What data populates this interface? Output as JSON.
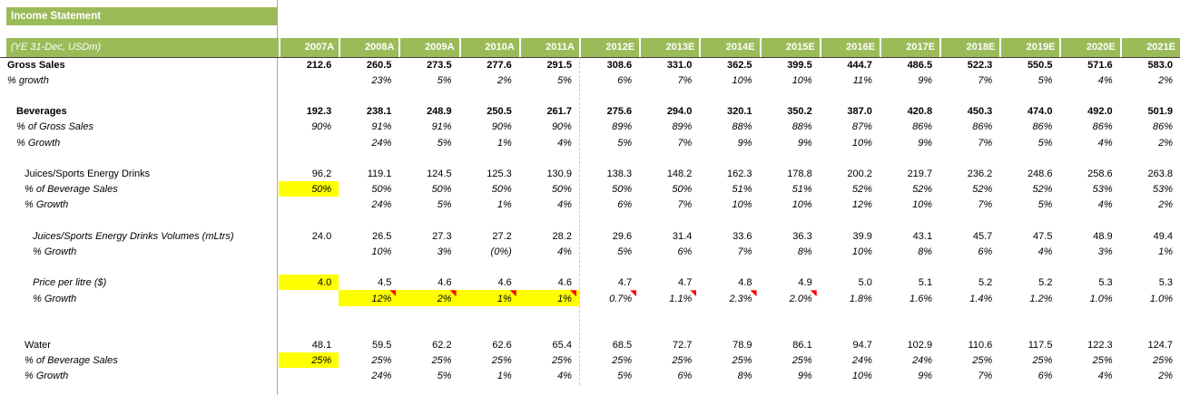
{
  "title": "Income Statement",
  "colors": {
    "header_green": "#9BBB59",
    "header_text": "#FFFFFF",
    "highlight_yellow": "#FFFF00",
    "comment_flag_red": "#FF0000"
  },
  "header": {
    "label": "(YE 31-Dec, USDm)",
    "years": [
      "2007A",
      "2008A",
      "2009A",
      "2010A",
      "2011A",
      "2012E",
      "2013E",
      "2014E",
      "2015E",
      "2016E",
      "2017E",
      "2018E",
      "2019E",
      "2020E",
      "2021E"
    ]
  },
  "table": {
    "rows": [
      {
        "label": "Gross Sales",
        "indent": 0,
        "label_style": "bold",
        "value_style": "bold",
        "values": [
          "212.6",
          "260.5",
          "273.5",
          "277.6",
          "291.5",
          "308.6",
          "331.0",
          "362.5",
          "399.5",
          "444.7",
          "486.5",
          "522.3",
          "550.5",
          "571.6",
          "583.0"
        ]
      },
      {
        "label": "% growth",
        "indent": 0,
        "label_style": "italic",
        "value_style": "italic",
        "values": [
          "",
          "23%",
          "5%",
          "2%",
          "5%",
          "6%",
          "7%",
          "10%",
          "10%",
          "11%",
          "9%",
          "7%",
          "5%",
          "4%",
          "2%"
        ]
      },
      {
        "spacer": true
      },
      {
        "label": "Beverages",
        "indent": 1,
        "label_style": "bold",
        "value_style": "bold",
        "values": [
          "192.3",
          "238.1",
          "248.9",
          "250.5",
          "261.7",
          "275.6",
          "294.0",
          "320.1",
          "350.2",
          "387.0",
          "420.8",
          "450.3",
          "474.0",
          "492.0",
          "501.9"
        ]
      },
      {
        "label": "% of Gross Sales",
        "indent": 1,
        "label_style": "italic",
        "value_style": "italic",
        "values": [
          "90%",
          "91%",
          "91%",
          "90%",
          "90%",
          "89%",
          "89%",
          "88%",
          "88%",
          "87%",
          "86%",
          "86%",
          "86%",
          "86%",
          "86%"
        ]
      },
      {
        "label": "% Growth",
        "indent": 1,
        "label_style": "italic",
        "value_style": "italic",
        "values": [
          "",
          "24%",
          "5%",
          "1%",
          "4%",
          "5%",
          "7%",
          "9%",
          "9%",
          "10%",
          "9%",
          "7%",
          "5%",
          "4%",
          "2%"
        ]
      },
      {
        "spacer": true
      },
      {
        "label": "Juices/Sports Energy Drinks",
        "indent": 2,
        "label_style": "regular",
        "value_style": "regular",
        "values": [
          "96.2",
          "119.1",
          "124.5",
          "125.3",
          "130.9",
          "138.3",
          "148.2",
          "162.3",
          "178.8",
          "200.2",
          "219.7",
          "236.2",
          "248.6",
          "258.6",
          "263.8"
        ]
      },
      {
        "label": "% of Beverage Sales",
        "indent": 2,
        "label_style": "italic",
        "value_style": "italic",
        "highlights": [
          0
        ],
        "values": [
          "50%",
          "50%",
          "50%",
          "50%",
          "50%",
          "50%",
          "50%",
          "51%",
          "51%",
          "52%",
          "52%",
          "52%",
          "52%",
          "53%",
          "53%"
        ]
      },
      {
        "label": "% Growth",
        "indent": 2,
        "label_style": "italic",
        "value_style": "italic",
        "values": [
          "",
          "24%",
          "5%",
          "1%",
          "4%",
          "6%",
          "7%",
          "10%",
          "10%",
          "12%",
          "10%",
          "7%",
          "5%",
          "4%",
          "2%"
        ]
      },
      {
        "spacer": true
      },
      {
        "label": "Juices/Sports Energy Drinks Volumes (mLtrs)",
        "indent": 3,
        "label_style": "italic",
        "value_style": "regular",
        "values": [
          "24.0",
          "26.5",
          "27.3",
          "27.2",
          "28.2",
          "29.6",
          "31.4",
          "33.6",
          "36.3",
          "39.9",
          "43.1",
          "45.7",
          "47.5",
          "48.9",
          "49.4"
        ]
      },
      {
        "label": "% Growth",
        "indent": 3,
        "label_style": "italic",
        "value_style": "italic",
        "values": [
          "",
          "10%",
          "3%",
          "(0%)",
          "4%",
          "5%",
          "6%",
          "7%",
          "8%",
          "10%",
          "8%",
          "6%",
          "4%",
          "3%",
          "1%"
        ]
      },
      {
        "spacer": true
      },
      {
        "label": "Price per litre ($)",
        "indent": 3,
        "label_style": "italic",
        "value_style": "regular",
        "highlights": [
          0
        ],
        "values": [
          "4.0",
          "4.5",
          "4.6",
          "4.6",
          "4.6",
          "4.7",
          "4.7",
          "4.8",
          "4.9",
          "5.0",
          "5.1",
          "5.2",
          "5.2",
          "5.3",
          "5.3"
        ]
      },
      {
        "label": "% Growth",
        "indent": 3,
        "label_style": "italic",
        "value_style": "italic",
        "highlights": [
          1,
          2,
          3,
          4
        ],
        "flags": [
          1,
          2,
          3,
          4,
          5,
          6,
          7,
          8
        ],
        "values": [
          "",
          "12%",
          "2%",
          "1%",
          "1%",
          "0.7%",
          "1.1%",
          "2.3%",
          "2.0%",
          "1.8%",
          "1.6%",
          "1.4%",
          "1.2%",
          "1.0%",
          "1.0%"
        ]
      },
      {
        "spacer": true
      },
      {
        "spacer": true
      },
      {
        "label": "Water",
        "indent": 2,
        "label_style": "regular",
        "value_style": "regular",
        "values": [
          "48.1",
          "59.5",
          "62.2",
          "62.6",
          "65.4",
          "68.5",
          "72.7",
          "78.9",
          "86.1",
          "94.7",
          "102.9",
          "110.6",
          "117.5",
          "122.3",
          "124.7"
        ]
      },
      {
        "label": "% of Beverage Sales",
        "indent": 2,
        "label_style": "italic",
        "value_style": "italic",
        "highlights": [
          0
        ],
        "values": [
          "25%",
          "25%",
          "25%",
          "25%",
          "25%",
          "25%",
          "25%",
          "25%",
          "25%",
          "24%",
          "24%",
          "25%",
          "25%",
          "25%",
          "25%"
        ]
      },
      {
        "label": "% Growth",
        "indent": 2,
        "label_style": "italic",
        "value_style": "italic",
        "values": [
          "",
          "24%",
          "5%",
          "1%",
          "4%",
          "5%",
          "6%",
          "8%",
          "9%",
          "10%",
          "9%",
          "7%",
          "6%",
          "4%",
          "2%"
        ]
      }
    ]
  }
}
